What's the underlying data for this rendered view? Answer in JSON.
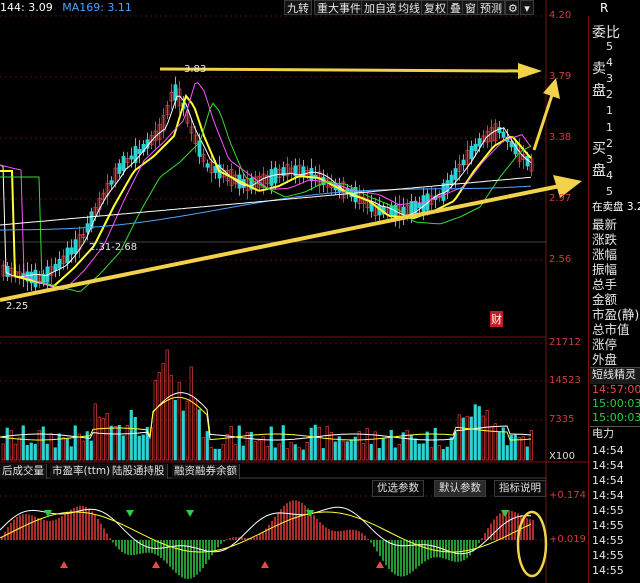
{
  "ma_legend": [
    {
      "text": "144: 3.09",
      "color": "#ffffff"
    },
    {
      "text": "MA169: 3.11",
      "color": "#4fa3ff"
    }
  ],
  "toolbar": {
    "items": [
      "九转",
      "重大事件",
      "加自选",
      "均线",
      "复权",
      "叠",
      "窗",
      "预测"
    ],
    "r_label": "R"
  },
  "price_axis": [
    "4.20",
    "3.79",
    "3.38",
    "2.97",
    "2.56"
  ],
  "high_label": "3.83",
  "range_label": "2.31-2.68",
  "low_label": "2.25",
  "cai_label": "财",
  "volume_axis": [
    "21712",
    "14523",
    "7335",
    "X100"
  ],
  "bottom_tabs": [
    "后成交量",
    "市盈率(ttm)",
    "陆股通持股",
    "融资融券余额"
  ],
  "param_tabs": [
    "优选参数",
    "默认参数",
    "指标说明"
  ],
  "macd_axis": [
    "+0.174",
    "+0.019"
  ],
  "side_panel": {
    "wei_bi": "委比",
    "sell_label": "卖\n盘",
    "buy_label": "买\n盘",
    "sell_nums": [
      "5",
      "4",
      "3",
      "2",
      "1"
    ],
    "buy_nums": [
      "1",
      "2",
      "3",
      "4",
      "5"
    ],
    "in_sell": "在卖盘 3.28",
    "fields": [
      "最新",
      "涨跌",
      "涨幅",
      "振幅",
      "总手",
      "金额",
      "市盈(静)",
      "总市值",
      "涨停",
      "外盘"
    ],
    "spirit_title": "短线精灵",
    "spirit_rows": [
      {
        "time": "14:57:00",
        "color": "#e64a4a"
      },
      {
        "time": "15:00:03",
        "color": "#2ecc40"
      },
      {
        "time": "15:00:03",
        "color": "#2ecc40"
      }
    ],
    "sector": "电力",
    "times": [
      "14:54",
      "14:54",
      "14:54",
      "14:54",
      "14:55",
      "14:55",
      "14:55",
      "14:55",
      "14:55"
    ]
  },
  "colors": {
    "up": "#e23b3b",
    "down": "#2fd2d2",
    "ma5": "#ffffff",
    "ma10": "#ffff33",
    "ma20": "#ff55ff",
    "ma60": "#33dd33",
    "ma144": "#ffffff",
    "arrow": "#f2d24a"
  }
}
